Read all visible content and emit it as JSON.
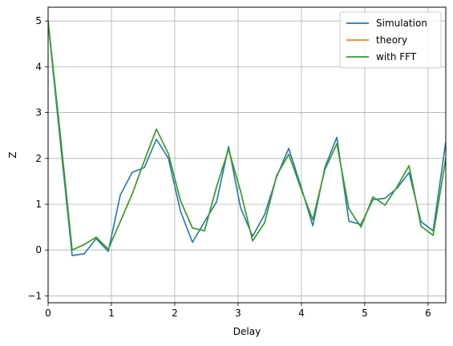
{
  "chart_data": {
    "type": "line",
    "xlabel": "Delay",
    "ylabel": "Z",
    "xlim": [
      0,
      6.28
    ],
    "ylim": [
      -1.15,
      5.3
    ],
    "xticks": [
      0,
      1,
      2,
      3,
      4,
      5,
      6
    ],
    "yticks": [
      -1,
      0,
      1,
      2,
      3,
      4,
      5
    ],
    "grid": true,
    "legend_position": "top-right",
    "x": [
      0.0,
      0.19,
      0.38,
      0.57,
      0.76,
      0.95,
      1.14,
      1.33,
      1.52,
      1.71,
      1.9,
      2.09,
      2.28,
      2.47,
      2.66,
      2.85,
      3.04,
      3.23,
      3.42,
      3.61,
      3.8,
      3.99,
      4.18,
      4.37,
      4.56,
      4.75,
      4.94,
      5.13,
      5.32,
      5.51,
      5.7,
      5.89,
      6.08,
      6.28
    ],
    "series": [
      {
        "name": "Simulation",
        "color": "#1f77b4",
        "values": [
          4.97,
          2.4,
          -0.12,
          -0.08,
          0.25,
          -0.03,
          1.2,
          1.7,
          1.8,
          2.42,
          2.0,
          0.85,
          0.17,
          0.62,
          1.05,
          2.26,
          0.92,
          0.3,
          0.78,
          1.6,
          2.22,
          1.4,
          0.53,
          1.8,
          2.46,
          0.63,
          0.56,
          1.1,
          1.13,
          1.35,
          1.69,
          0.62,
          0.42,
          2.36
        ]
      },
      {
        "name": "theory",
        "color": "#ff7f0e",
        "values": [
          5.0,
          2.55,
          0.0,
          0.12,
          0.28,
          0.02,
          0.62,
          1.23,
          1.95,
          2.64,
          2.1,
          1.08,
          0.48,
          0.42,
          1.38,
          2.2,
          1.28,
          0.2,
          0.6,
          1.63,
          2.09,
          1.35,
          0.66,
          1.75,
          2.32,
          0.9,
          0.5,
          1.16,
          0.98,
          1.38,
          1.84,
          0.52,
          0.32,
          2.0
        ]
      },
      {
        "name": "with FFT",
        "color": "#2ca02c",
        "values": [
          5.0,
          2.55,
          0.0,
          0.12,
          0.28,
          0.02,
          0.62,
          1.23,
          1.95,
          2.64,
          2.1,
          1.08,
          0.48,
          0.42,
          1.38,
          2.2,
          1.28,
          0.2,
          0.6,
          1.63,
          2.09,
          1.35,
          0.66,
          1.75,
          2.32,
          0.9,
          0.5,
          1.16,
          0.98,
          1.38,
          1.84,
          0.52,
          0.32,
          2.0
        ]
      }
    ]
  }
}
